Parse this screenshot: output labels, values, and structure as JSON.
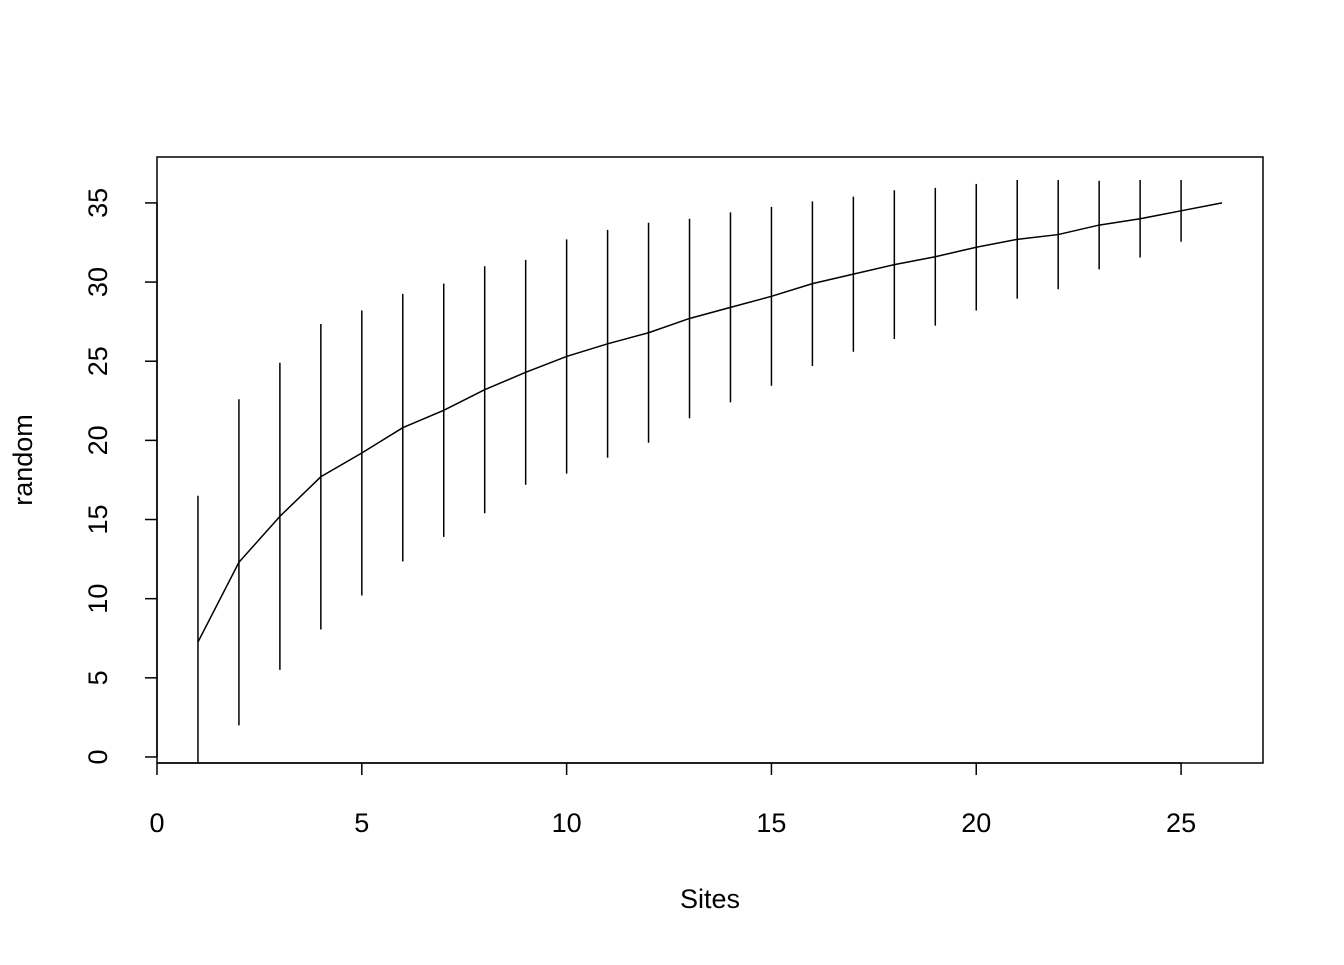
{
  "chart_data": {
    "type": "line",
    "xlabel": "Sites",
    "ylabel": "random",
    "x": [
      1,
      2,
      3,
      4,
      5,
      6,
      7,
      8,
      9,
      10,
      11,
      12,
      13,
      14,
      15,
      16,
      17,
      18,
      19,
      20,
      21,
      22,
      23,
      24,
      25,
      26
    ],
    "values": [
      7.26,
      12.3,
      15.2,
      17.7,
      19.2,
      20.8,
      21.9,
      23.2,
      24.3,
      25.3,
      26.1,
      26.8,
      27.7,
      28.4,
      29.1,
      29.9,
      30.5,
      31.1,
      31.6,
      32.2,
      32.7,
      33.0,
      33.6,
      34.0,
      34.5,
      35.0
    ],
    "errors": [
      9.24,
      10.3,
      9.7,
      9.65,
      9.0,
      8.45,
      8.0,
      7.8,
      7.1,
      7.4,
      7.2,
      6.95,
      6.3,
      6.0,
      5.65,
      5.2,
      4.9,
      4.7,
      4.35,
      4.0,
      3.75,
      3.45,
      2.8,
      2.45,
      1.95,
      0
    ],
    "color": "#000000",
    "xlim": [
      0,
      27
    ],
    "ylim": [
      -0.38,
      37.9
    ],
    "xticks": [
      0,
      5,
      10,
      15,
      20,
      25
    ],
    "yticks": [
      0,
      5,
      10,
      15,
      20,
      25,
      30,
      35
    ]
  }
}
